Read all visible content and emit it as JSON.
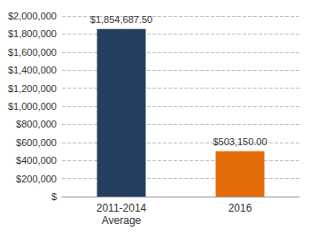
{
  "chart_data": {
    "type": "bar",
    "categories": [
      "2011-2014\nAverage",
      "2016"
    ],
    "values": [
      1854687.5,
      503150
    ],
    "value_labels": [
      "$1,854,687.50",
      "$503,150.00"
    ],
    "colors": [
      "#243f60",
      "#e36c09"
    ],
    "data_labels": true,
    "ylim": [
      0,
      2000000
    ],
    "yticks": [
      {
        "value": 0,
        "label": "$"
      },
      {
        "value": 200000,
        "label": "$200,000"
      },
      {
        "value": 400000,
        "label": "$400,000"
      },
      {
        "value": 600000,
        "label": "$600,000"
      },
      {
        "value": 800000,
        "label": "$800,000"
      },
      {
        "value": 1000000,
        "label": "$1,000,000"
      },
      {
        "value": 1200000,
        "label": "$1,200,000"
      },
      {
        "value": 1400000,
        "label": "$1,400,000"
      },
      {
        "value": 1600000,
        "label": "$1,600,000"
      },
      {
        "value": 1800000,
        "label": "$1,800,000"
      },
      {
        "value": 2000000,
        "label": "$2,000,000"
      }
    ],
    "grid": true
  }
}
